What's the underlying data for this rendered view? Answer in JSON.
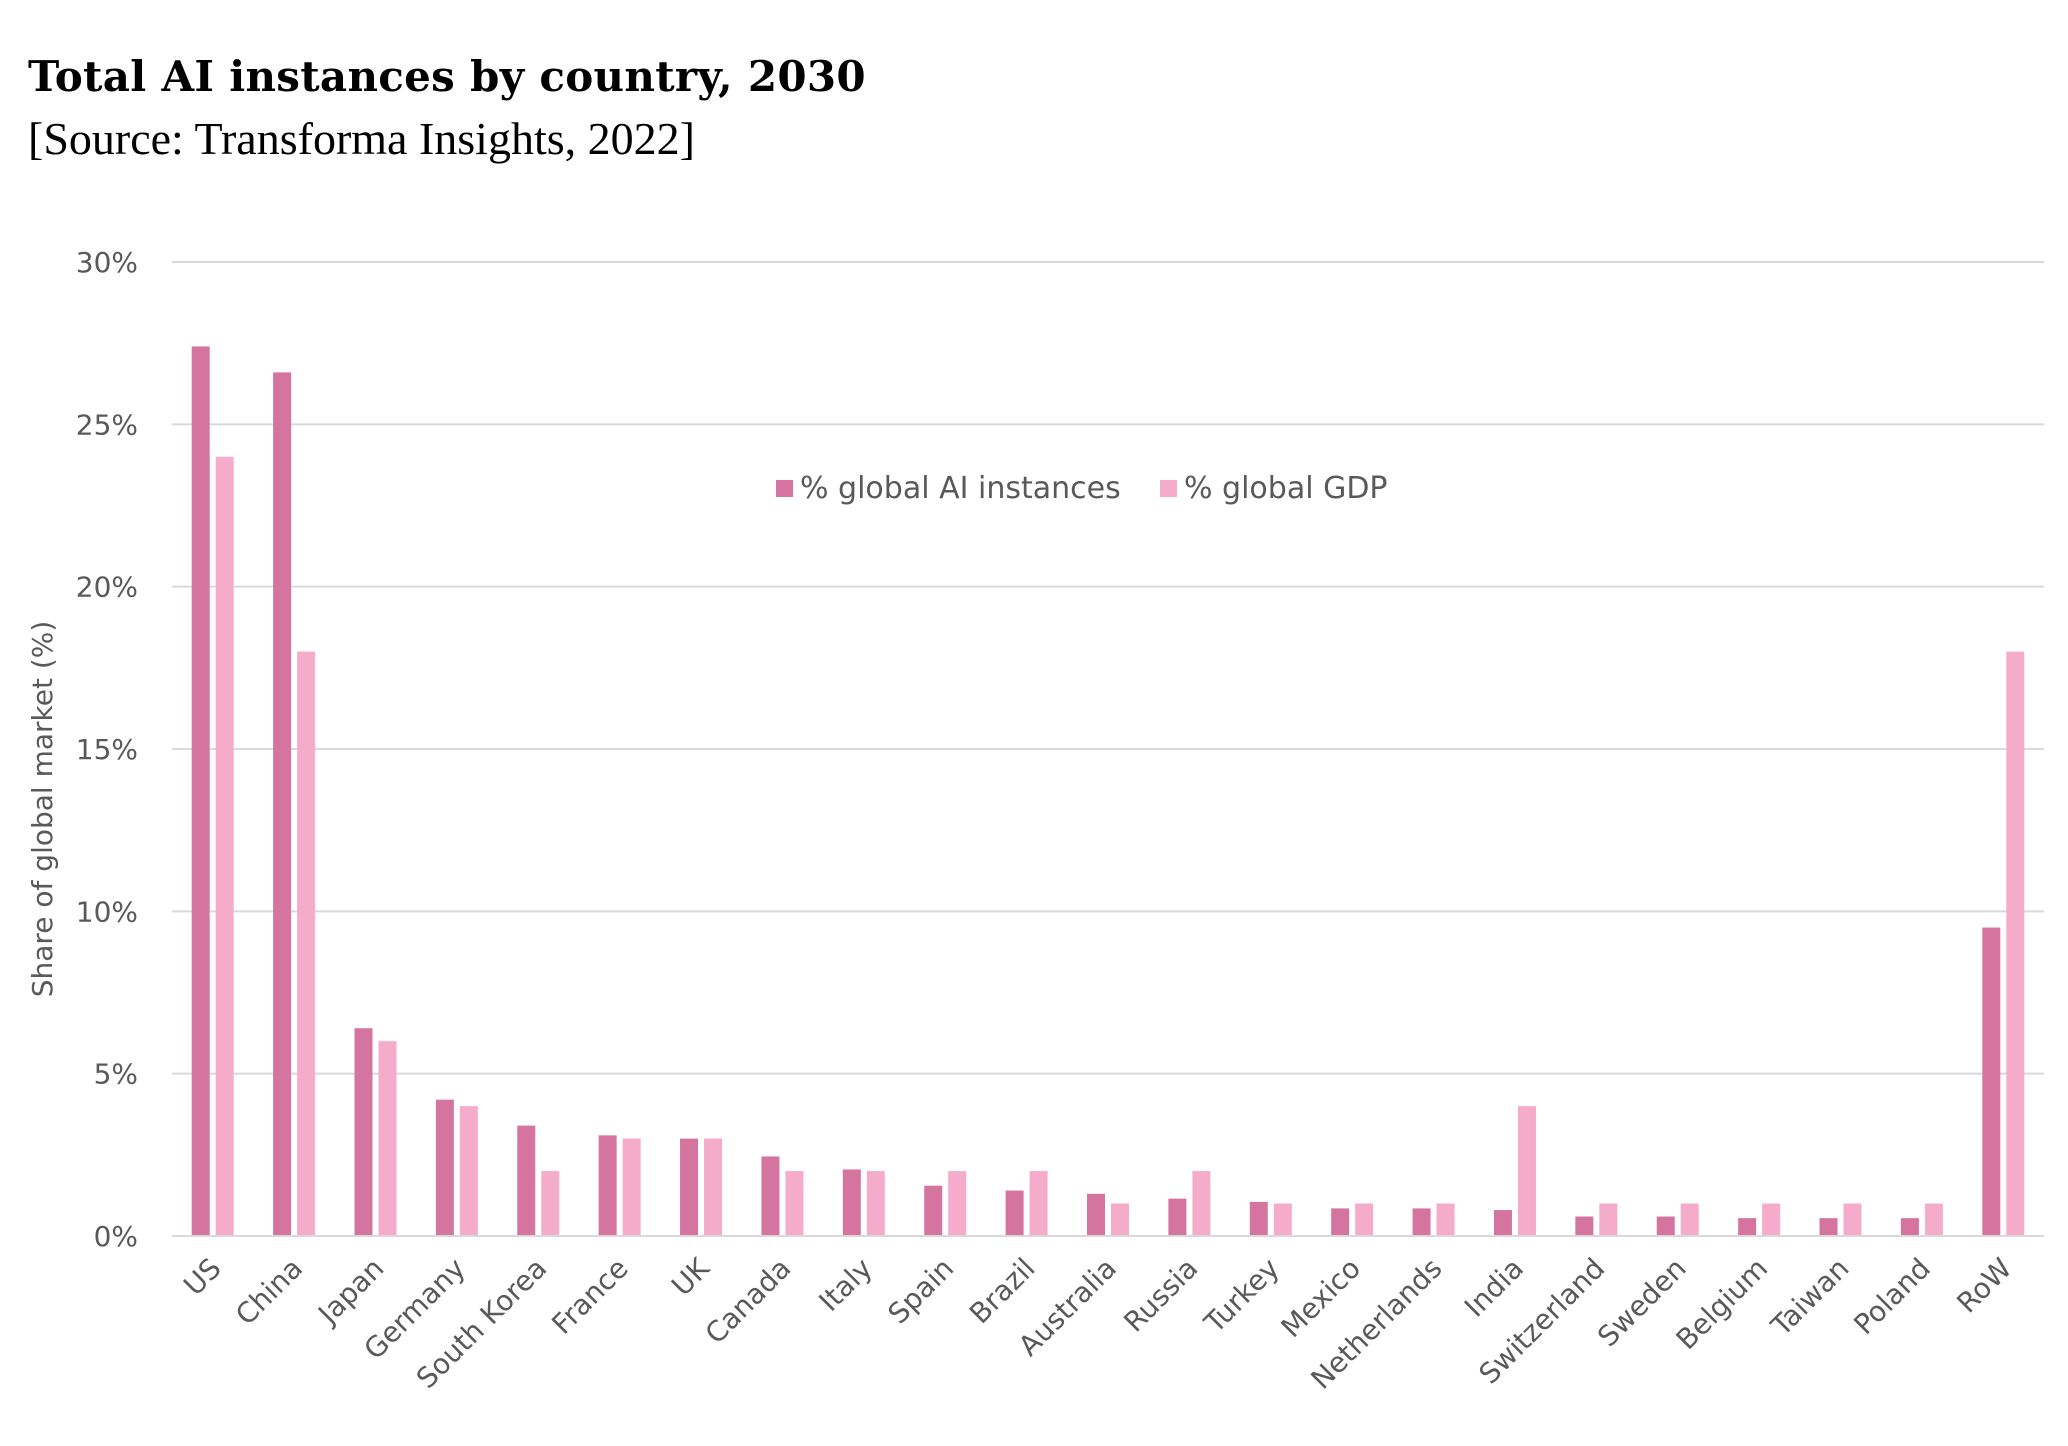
{
  "chart_data": {
    "type": "bar",
    "title": "Total AI instances by country, 2030",
    "subtitle": "[Source: Transforma Insights, 2022]",
    "ylabel": "Share of global market (%)",
    "xlabel": "",
    "ylim": [
      0,
      30
    ],
    "yticks": [
      "0%",
      "5%",
      "10%",
      "15%",
      "20%",
      "25%",
      "30%"
    ],
    "grid": true,
    "legend_position": "top-center",
    "categories": [
      "US",
      "China",
      "Japan",
      "Germany",
      "South Korea",
      "France",
      "UK",
      "Canada",
      "Italy",
      "Spain",
      "Brazil",
      "Australia",
      "Russia",
      "Turkey",
      "Mexico",
      "Netherlands",
      "India",
      "Switzerland",
      "Sweden",
      "Belgium",
      "Taiwan",
      "Poland",
      "RoW"
    ],
    "series": [
      {
        "name": "% global AI instances",
        "color": "#D4749F",
        "values": [
          27.4,
          26.6,
          6.4,
          4.2,
          3.4,
          3.1,
          3.0,
          2.45,
          2.05,
          1.55,
          1.4,
          1.3,
          1.15,
          1.05,
          0.85,
          0.85,
          0.8,
          0.6,
          0.6,
          0.55,
          0.55,
          0.55,
          9.5
        ]
      },
      {
        "name": "% global GDP",
        "color": "#F5ABCA",
        "values": [
          24.0,
          18.0,
          6.0,
          4.0,
          2.0,
          3.0,
          3.0,
          2.0,
          2.0,
          2.0,
          2.0,
          1.0,
          2.0,
          1.0,
          1.0,
          1.0,
          4.0,
          1.0,
          1.0,
          1.0,
          1.0,
          1.0,
          18.0
        ]
      }
    ]
  }
}
